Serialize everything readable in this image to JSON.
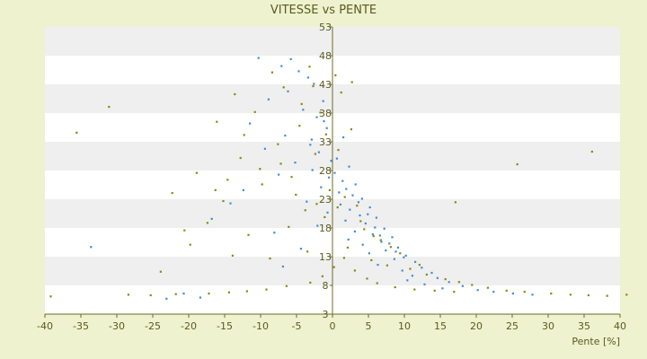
{
  "chart_data": {
    "type": "scatter",
    "title": "VITESSE vs PENTE",
    "xlabel": "Pente [%]",
    "ylabel": "",
    "xlim": [
      -40,
      40
    ],
    "ylim": [
      3,
      53
    ],
    "x_ticks": [
      -40,
      -35,
      -30,
      -25,
      -20,
      -15,
      -10,
      -5,
      0,
      5,
      10,
      15,
      20,
      25,
      30,
      35,
      40
    ],
    "y_ticks": [
      3,
      8,
      13,
      18,
      23,
      28,
      33,
      38,
      43,
      48,
      53
    ],
    "grid": true,
    "legend": "none",
    "colors": {
      "background": "#eef2cf",
      "band_light": "#ffffff",
      "band_dark": "#efefef",
      "axis": "#6b6b2a",
      "text": "#5a5a1e",
      "series_blue": "#3f8fd6",
      "series_olive": "#8a8a10"
    },
    "series": [
      {
        "color": "#3f8fd6",
        "points": [
          [
            -10.3,
            47.6
          ],
          [
            -5.8,
            47.4
          ],
          [
            -7.1,
            46.2
          ],
          [
            -4.7,
            45.3
          ],
          [
            -3.4,
            44.2
          ],
          [
            -2.6,
            43.1
          ],
          [
            -6.2,
            41.8
          ],
          [
            -8.9,
            40.4
          ],
          [
            -1.3,
            40.1
          ],
          [
            -4.1,
            38.6
          ],
          [
            -2.2,
            37.3
          ],
          [
            -11.5,
            36.2
          ],
          [
            -0.8,
            35.4
          ],
          [
            -6.6,
            34.1
          ],
          [
            1.5,
            33.8
          ],
          [
            -3.1,
            32.5
          ],
          [
            -9.4,
            31.8
          ],
          [
            -1.9,
            31.2
          ],
          [
            0.6,
            30.1
          ],
          [
            -5.2,
            29.4
          ],
          [
            2.3,
            28.7
          ],
          [
            -2.8,
            28.1
          ],
          [
            -7.5,
            27.3
          ],
          [
            -0.5,
            26.8
          ],
          [
            1.4,
            26.2
          ],
          [
            3.2,
            25.6
          ],
          [
            -1.6,
            25.1
          ],
          [
            -12.4,
            24.6
          ],
          [
            0.9,
            24.2
          ],
          [
            2.8,
            23.7
          ],
          [
            4.1,
            23.1
          ],
          [
            -3.6,
            22.6
          ],
          [
            1.1,
            22.1
          ],
          [
            5.2,
            21.6
          ],
          [
            2.4,
            21.2
          ],
          [
            -0.7,
            20.7
          ],
          [
            3.8,
            20.2
          ],
          [
            6.1,
            19.8
          ],
          [
            1.8,
            19.3
          ],
          [
            4.6,
            18.8
          ],
          [
            -2.1,
            18.4
          ],
          [
            7.2,
            17.9
          ],
          [
            3.1,
            17.4
          ],
          [
            5.6,
            16.9
          ],
          [
            8.3,
            16.4
          ],
          [
            2.2,
            16.0
          ],
          [
            6.8,
            15.6
          ],
          [
            4.2,
            15.1
          ],
          [
            9.1,
            14.6
          ],
          [
            7.4,
            14.1
          ],
          [
            5.1,
            13.6
          ],
          [
            10.2,
            13.2
          ],
          [
            8.6,
            12.6
          ],
          [
            11.5,
            12.1
          ],
          [
            6.3,
            11.6
          ],
          [
            12.4,
            11.1
          ],
          [
            9.7,
            10.6
          ],
          [
            13.8,
            10.2
          ],
          [
            11.1,
            9.7
          ],
          [
            14.6,
            9.3
          ],
          [
            10.4,
            8.9
          ],
          [
            16.2,
            8.6
          ],
          [
            12.8,
            8.2
          ],
          [
            18.1,
            7.9
          ],
          [
            15.3,
            7.5
          ],
          [
            20.2,
            7.2
          ],
          [
            22.4,
            6.9
          ],
          [
            25.1,
            6.6
          ],
          [
            -33.6,
            14.7
          ],
          [
            -14.2,
            22.3
          ],
          [
            -16.8,
            19.6
          ],
          [
            -8.1,
            17.2
          ],
          [
            -4.4,
            14.4
          ],
          [
            -6.9,
            11.3
          ],
          [
            -20.7,
            6.6
          ],
          [
            -18.4,
            5.9
          ],
          [
            -23.1,
            5.7
          ],
          [
            27.8,
            6.4
          ],
          [
            -1.2,
            36.6
          ],
          [
            -2.9,
            33.4
          ],
          [
            -0.2,
            29.7
          ],
          [
            0.3,
            27.6
          ],
          [
            1.9,
            24.8
          ],
          [
            3.6,
            22.5
          ],
          [
            4.9,
            20.4
          ],
          [
            5.9,
            18.1
          ],
          [
            6.6,
            16.7
          ],
          [
            7.9,
            15.3
          ],
          [
            8.8,
            13.9
          ],
          [
            9.9,
            12.9
          ]
        ]
      },
      {
        "color": "#8a8a10",
        "points": [
          [
            -31.1,
            39.1
          ],
          [
            -35.6,
            34.6
          ],
          [
            -8.4,
            45.1
          ],
          [
            -3.2,
            46.1
          ],
          [
            -6.8,
            42.5
          ],
          [
            -13.6,
            41.3
          ],
          [
            -10.8,
            38.2
          ],
          [
            -16.1,
            36.5
          ],
          [
            -4.3,
            39.6
          ],
          [
            -1.7,
            38.1
          ],
          [
            -12.3,
            34.2
          ],
          [
            -7.6,
            32.6
          ],
          [
            -18.9,
            27.6
          ],
          [
            -22.3,
            24.1
          ],
          [
            -2.4,
            30.9
          ],
          [
            0.8,
            31.6
          ],
          [
            2.6,
            35.2
          ],
          [
            -15.2,
            22.7
          ],
          [
            -9.8,
            25.6
          ],
          [
            -5.7,
            26.9
          ],
          [
            -0.4,
            24.6
          ],
          [
            1.7,
            23.4
          ],
          [
            3.4,
            21.9
          ],
          [
            -3.8,
            21.1
          ],
          [
            -20.6,
            17.6
          ],
          [
            -17.4,
            18.9
          ],
          [
            -11.7,
            16.8
          ],
          [
            -6.1,
            18.2
          ],
          [
            -1.1,
            19.9
          ],
          [
            4.4,
            17.8
          ],
          [
            6.7,
            15.9
          ],
          [
            8.1,
            14.7
          ],
          [
            -13.9,
            13.2
          ],
          [
            -8.7,
            12.7
          ],
          [
            -3.5,
            13.9
          ],
          [
            2.1,
            14.6
          ],
          [
            5.4,
            12.4
          ],
          [
            7.6,
            11.5
          ],
          [
            10.8,
            10.9
          ],
          [
            13.1,
            9.9
          ],
          [
            15.7,
            9.1
          ],
          [
            17.6,
            8.6
          ],
          [
            19.4,
            8.1
          ],
          [
            21.6,
            7.6
          ],
          [
            24.2,
            7.1
          ],
          [
            26.7,
            6.9
          ],
          [
            30.4,
            6.6
          ],
          [
            33.1,
            6.4
          ],
          [
            35.6,
            6.3
          ],
          [
            38.2,
            6.2
          ],
          [
            40.9,
            6.4
          ],
          [
            -39.2,
            6.1
          ],
          [
            -28.4,
            6.4
          ],
          [
            -25.3,
            6.3
          ],
          [
            -21.8,
            6.5
          ],
          [
            -17.2,
            6.6
          ],
          [
            -14.4,
            6.8
          ],
          [
            -11.9,
            7.0
          ],
          [
            -9.2,
            7.3
          ],
          [
            -6.4,
            7.9
          ],
          [
            -3.1,
            8.5
          ],
          [
            -1.4,
            9.6
          ],
          [
            0.2,
            11.2
          ],
          [
            1.6,
            12.8
          ],
          [
            3.1,
            10.6
          ],
          [
            4.8,
            9.2
          ],
          [
            6.2,
            8.4
          ],
          [
            8.7,
            7.7
          ],
          [
            11.4,
            7.3
          ],
          [
            14.2,
            7.1
          ],
          [
            16.9,
            6.9
          ],
          [
            25.7,
            29.1
          ],
          [
            36.1,
            31.3
          ],
          [
            17.1,
            22.5
          ],
          [
            -19.8,
            15.1
          ],
          [
            -23.9,
            10.4
          ],
          [
            -2.7,
            42.7
          ],
          [
            0.4,
            44.6
          ],
          [
            1.2,
            41.6
          ],
          [
            2.7,
            43.4
          ],
          [
            -0.9,
            34.3
          ],
          [
            -4.6,
            35.8
          ],
          [
            -7.2,
            29.2
          ],
          [
            -10.1,
            28.3
          ],
          [
            -12.8,
            30.2
          ],
          [
            -14.6,
            26.4
          ],
          [
            -16.3,
            24.6
          ],
          [
            -5.1,
            23.8
          ],
          [
            -2.2,
            22.2
          ],
          [
            0.7,
            21.6
          ],
          [
            3.9,
            19.2
          ],
          [
            5.7,
            16.6
          ],
          [
            9.4,
            13.6
          ],
          [
            12.1,
            11.6
          ]
        ]
      }
    ]
  }
}
